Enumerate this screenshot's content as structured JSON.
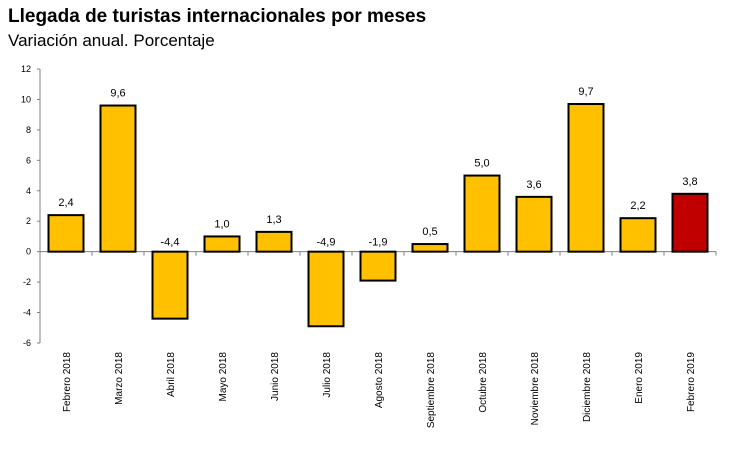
{
  "chart_data": {
    "type": "bar",
    "title": "Llegada de turistas internacionales por meses",
    "subtitle": "Variación anual. Porcentaje",
    "xlabel": "",
    "ylabel": "",
    "ylim": [
      -6,
      12
    ],
    "yticks": [
      "12",
      "10",
      "8",
      "6",
      "4",
      "2",
      "0",
      "-2",
      "-4",
      "-6"
    ],
    "ytick_values": [
      12,
      10,
      8,
      6,
      4,
      2,
      0,
      -2,
      -4,
      -6
    ],
    "categories": [
      "Febrero 2018",
      "Marzo 2018",
      "Abril 2018",
      "Mayo 2018",
      "Junio 2018",
      "Julio 2018",
      "Agosto 2018",
      "Septiembre 2018",
      "Octubre 2018",
      "Noviembre 2018",
      "Diciembre 2018",
      "Enero 2019",
      "Febrero 2019"
    ],
    "values": [
      2.4,
      9.6,
      -4.4,
      1.0,
      1.3,
      -4.9,
      -1.9,
      0.5,
      5.0,
      3.6,
      9.7,
      2.2,
      3.8
    ],
    "data_labels": [
      "2,4",
      "9,6",
      "-4,4",
      "1,0",
      "1,3",
      "-4,9",
      "-1,9",
      "0,5",
      "5,0",
      "3,6",
      "9,7",
      "2,2",
      "3,8"
    ],
    "colors": {
      "bar": "#FFC000",
      "highlight": "#C00000",
      "outline": "#000000"
    },
    "highlight_category": "Febrero 2019",
    "grid": false,
    "legend": "none"
  }
}
